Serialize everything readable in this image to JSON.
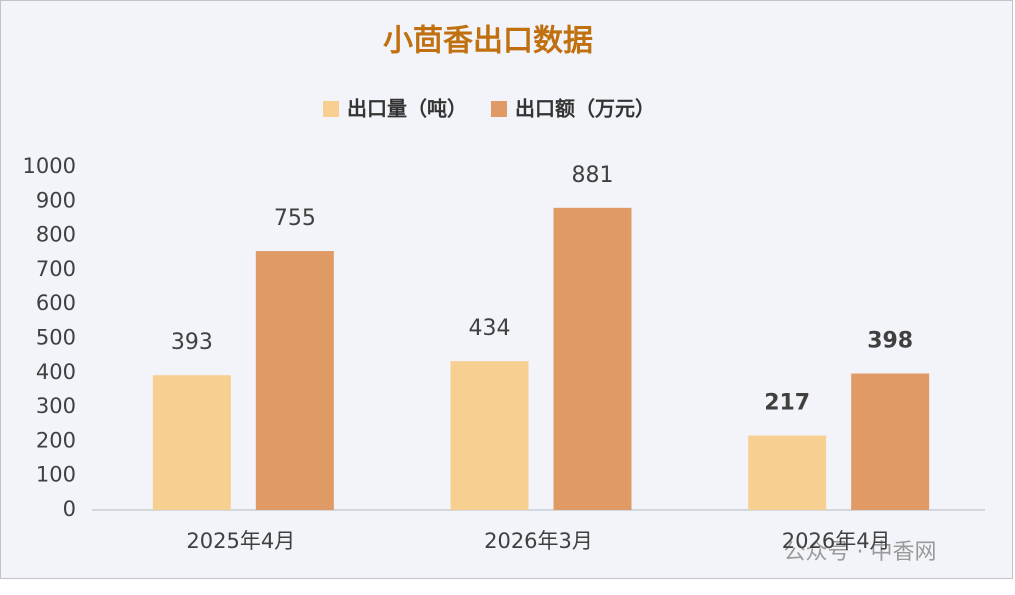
{
  "chart_data": {
    "type": "bar",
    "title": "小茴香出口数据",
    "categories": [
      "2025年4月",
      "2026年3月",
      "2026年4月"
    ],
    "series": [
      {
        "name": "出口量（吨）",
        "color": "#f7cf90",
        "values": [
          393,
          434,
          217
        ]
      },
      {
        "name": "出口额（万元）",
        "color": "#e09a66",
        "values": [
          755,
          881,
          398
        ]
      }
    ],
    "ylim": [
      0,
      1000
    ],
    "yticks": [
      0,
      100,
      200,
      300,
      400,
      500,
      600,
      700,
      800,
      900,
      1000
    ],
    "grid": false,
    "legend": "top",
    "watermark": "公众号 · 中香网"
  }
}
